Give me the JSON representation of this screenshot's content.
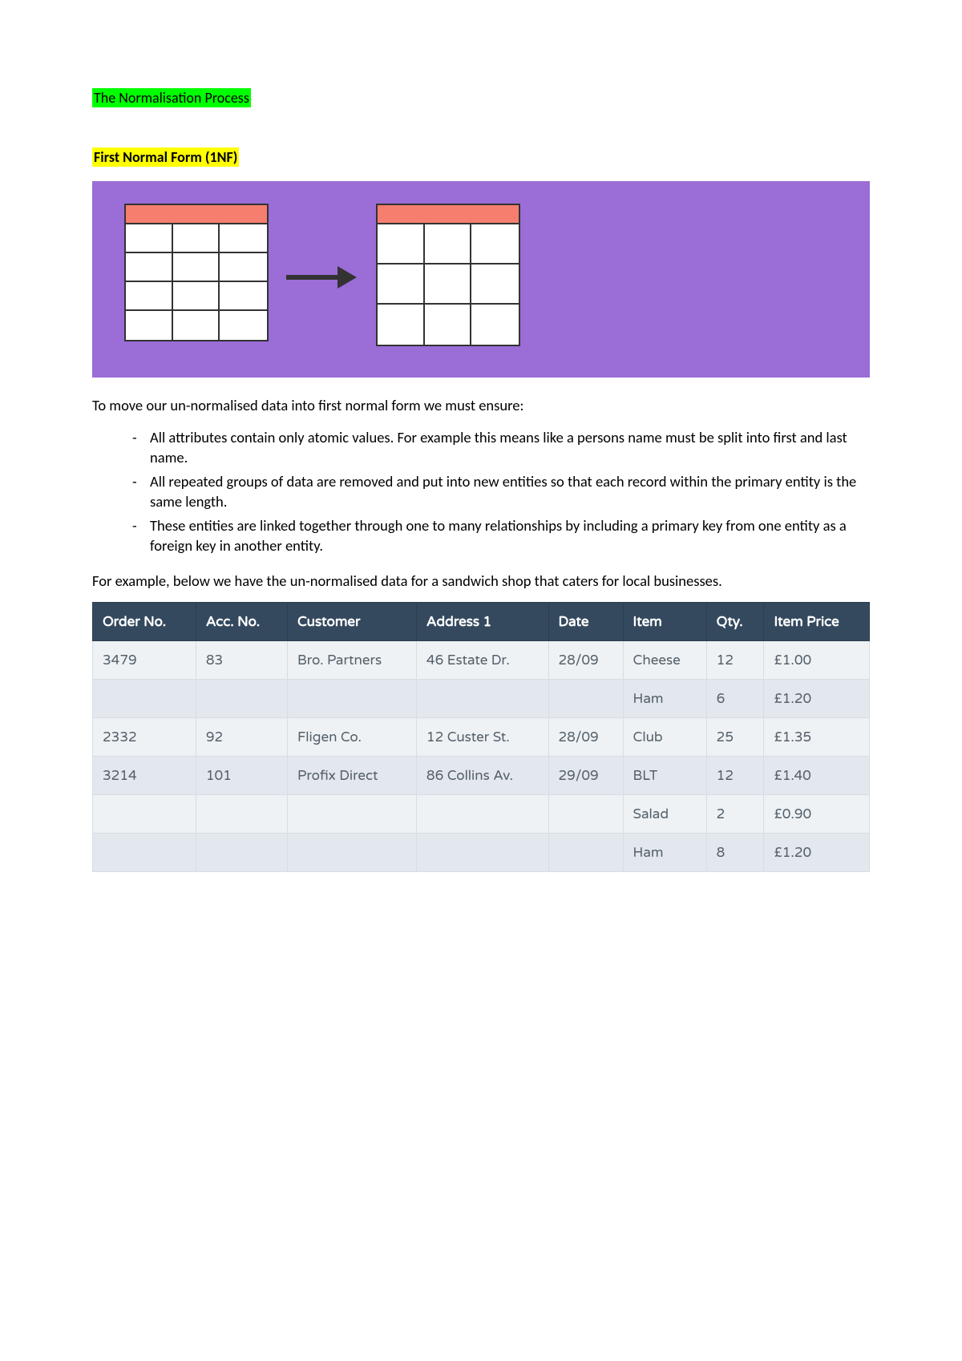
{
  "heading1": "The Normalisation Process",
  "heading2": "First Normal Form (1NF)",
  "intro": "To move our un-normalised data into first normal form we must ensure:",
  "bullets": [
    "All attributes contain only atomic values. For example this means like a persons name must be split into first and last name.",
    "All repeated groups of data are removed and put into new entities so that each record within the primary entity is the same length.",
    "These entities are linked together through one to many relationships by including a primary key from one entity as a foreign key in another entity."
  ],
  "example_intro": "For example, below we have the un-normalised data for a sandwich shop that caters for local businesses.",
  "table": {
    "columns": [
      "Order No.",
      "Acc. No.",
      "Customer",
      "Address 1",
      "Date",
      "Item",
      "Qty.",
      "Item Price"
    ],
    "rows": [
      [
        "3479",
        "83",
        "Bro. Partners",
        "46 Estate Dr.",
        "28/09",
        "Cheese",
        "12",
        "£1.00"
      ],
      [
        "",
        "",
        "",
        "",
        "",
        "Ham",
        "6",
        "£1.20"
      ],
      [
        "2332",
        "92",
        "Fligen Co.",
        "12 Custer St.",
        "28/09",
        "Club",
        "25",
        "£1.35"
      ],
      [
        "3214",
        "101",
        "Profix Direct",
        "86 Collins Av.",
        "29/09",
        "BLT",
        "12",
        "£1.40"
      ],
      [
        "",
        "",
        "",
        "",
        "",
        "Salad",
        "2",
        "£0.90"
      ],
      [
        "",
        "",
        "",
        "",
        "",
        "Ham",
        "8",
        "£1.20"
      ]
    ],
    "header_bg": "#34495e",
    "header_fg": "#ffffff",
    "row_odd_bg": "#eef2f5",
    "row_even_bg": "#e2e8ed"
  },
  "diagram": {
    "bg": "#9b6dd7",
    "header_fill": "#f67e6f",
    "left_rows": 4,
    "left_cols": 3,
    "right_rows": 3,
    "right_cols": 3
  },
  "colors": {
    "highlight_green": "#00ff00",
    "highlight_yellow": "#ffff00"
  }
}
